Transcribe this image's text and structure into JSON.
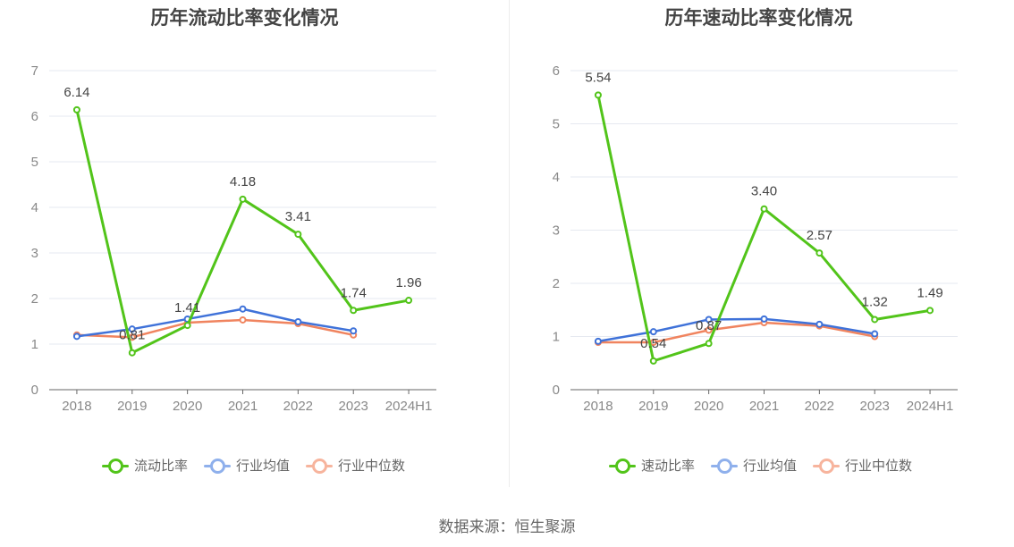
{
  "chart_data": [
    {
      "type": "line",
      "title": "历年流动比率变化情况",
      "categories": [
        "2018",
        "2019",
        "2020",
        "2021",
        "2022",
        "2023",
        "2024H1"
      ],
      "ylim": [
        0,
        7
      ],
      "yticks": [
        "0",
        "1",
        "2",
        "3",
        "4",
        "5",
        "6",
        "7"
      ],
      "series": [
        {
          "name": "流动比率",
          "color": "#52c41a",
          "values": [
            6.14,
            0.81,
            1.41,
            4.18,
            3.41,
            1.74,
            1.96
          ],
          "labels": [
            "6.14",
            "0.81",
            "1.41",
            "4.18",
            "3.41",
            "1.74",
            "1.96"
          ]
        },
        {
          "name": "行业均值",
          "color": "#3f72d9",
          "values": [
            1.17,
            1.33,
            1.55,
            1.77,
            1.49,
            1.29,
            null
          ]
        },
        {
          "name": "行业中位数",
          "color": "#f0845f",
          "values": [
            1.2,
            1.15,
            1.47,
            1.53,
            1.45,
            1.2,
            null
          ]
        }
      ],
      "legend": [
        "流动比率",
        "行业均值",
        "行业中位数"
      ],
      "legend_colors": [
        "#52c41a",
        "#8fb0ec",
        "#f7b49d"
      ]
    },
    {
      "type": "line",
      "title": "历年速动比率变化情况",
      "categories": [
        "2018",
        "2019",
        "2020",
        "2021",
        "2022",
        "2023",
        "2024H1"
      ],
      "ylim": [
        0,
        6
      ],
      "yticks": [
        "0",
        "1",
        "2",
        "3",
        "4",
        "5",
        "6"
      ],
      "series": [
        {
          "name": "速动比率",
          "color": "#52c41a",
          "values": [
            5.54,
            0.54,
            0.87,
            3.4,
            2.57,
            1.32,
            1.49
          ],
          "labels": [
            "5.54",
            "0.54",
            "0.87",
            "3.40",
            "2.57",
            "1.32",
            "1.49"
          ]
        },
        {
          "name": "行业均值",
          "color": "#3f72d9",
          "values": [
            0.91,
            1.09,
            1.32,
            1.33,
            1.23,
            1.05,
            null
          ]
        },
        {
          "name": "行业中位数",
          "color": "#f0845f",
          "values": [
            0.89,
            0.89,
            1.12,
            1.26,
            1.2,
            1.0,
            null
          ]
        }
      ],
      "legend": [
        "速动比率",
        "行业均值",
        "行业中位数"
      ],
      "legend_colors": [
        "#52c41a",
        "#8fb0ec",
        "#f7b49d"
      ]
    }
  ],
  "source": "数据来源：恒生聚源"
}
